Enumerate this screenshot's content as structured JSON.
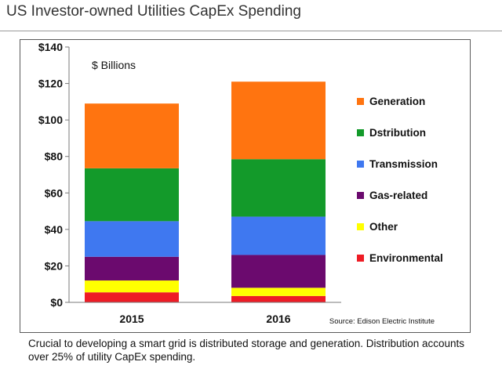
{
  "page": {
    "title": "US Investor-owned Utilities CapEx Spending",
    "caption": "Crucial to developing a smart grid is distributed storage and generation. Distribution accounts over 25% of utility CapEx spending."
  },
  "chart_data": {
    "type": "bar",
    "stacked": true,
    "title": "",
    "unit_note": "$ Billions",
    "source": "Source: Edison Electric Institute",
    "categories": [
      "2015",
      "2016"
    ],
    "ylim": [
      0,
      140
    ],
    "yticks": [
      0,
      20,
      40,
      60,
      80,
      100,
      120,
      140
    ],
    "ytick_labels": [
      "$0",
      "$20",
      "$40",
      "$60",
      "$80",
      "$100",
      "$120",
      "$140"
    ],
    "grid": false,
    "legend_position": "right",
    "series": [
      {
        "name": "Environmental",
        "color": "#ee1c25",
        "values": [
          5.5,
          3.5
        ]
      },
      {
        "name": "Other",
        "color": "#ffff00",
        "values": [
          6.5,
          4.5
        ]
      },
      {
        "name": "Gas-related",
        "color": "#6b0a6e",
        "values": [
          13,
          18
        ]
      },
      {
        "name": "Transmission",
        "color": "#3f78f0",
        "values": [
          19.5,
          21
        ]
      },
      {
        "name": "Dstribution",
        "color": "#139a2a",
        "values": [
          29,
          31.5
        ]
      },
      {
        "name": "Generation",
        "color": "#ff7410",
        "values": [
          35.5,
          42.5
        ]
      }
    ]
  }
}
